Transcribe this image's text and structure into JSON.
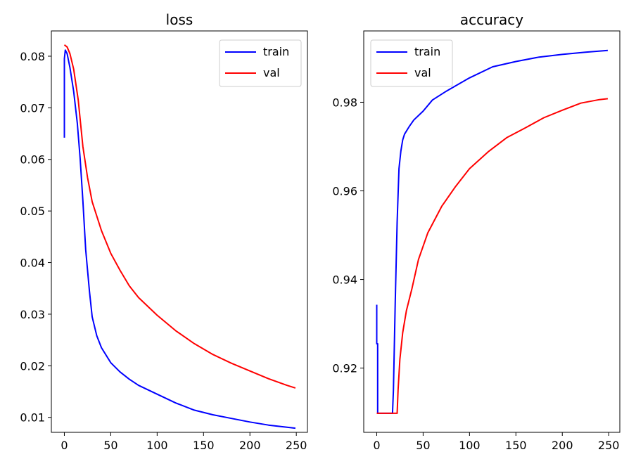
{
  "chart_data": [
    {
      "type": "line",
      "title": "loss",
      "xlabel": "",
      "ylabel": "",
      "xlim": [
        -14,
        262
      ],
      "ylim": [
        0.0071,
        0.0849
      ],
      "xticks": [
        0,
        50,
        100,
        150,
        200,
        250
      ],
      "yticks": [
        0.01,
        0.02,
        0.03,
        0.04,
        0.05,
        0.06,
        0.07,
        0.08
      ],
      "ytick_labels": [
        "0.01",
        "0.02",
        "0.03",
        "0.04",
        "0.05",
        "0.06",
        "0.07",
        "0.08"
      ],
      "grid": false,
      "legend": "top-right",
      "series": [
        {
          "name": "train",
          "color": "#0000ff",
          "x": [
            0,
            0,
            1,
            3,
            6,
            10,
            14,
            17,
            20,
            23,
            27,
            30,
            35,
            40,
            50,
            60,
            70,
            80,
            100,
            120,
            140,
            160,
            180,
            200,
            220,
            240,
            249
          ],
          "y": [
            0.0642,
            0.0795,
            0.0812,
            0.0805,
            0.0778,
            0.0732,
            0.067,
            0.0602,
            0.052,
            0.0425,
            0.0345,
            0.0295,
            0.0258,
            0.0235,
            0.0206,
            0.0188,
            0.0174,
            0.0162,
            0.0145,
            0.0128,
            0.0114,
            0.0105,
            0.0098,
            0.0091,
            0.0085,
            0.0081,
            0.0079
          ]
        },
        {
          "name": "val",
          "color": "#ff0000",
          "x": [
            0,
            3,
            6,
            10,
            15,
            20,
            25,
            30,
            40,
            50,
            60,
            70,
            80,
            100,
            120,
            140,
            160,
            180,
            200,
            220,
            240,
            249
          ],
          "y": [
            0.0822,
            0.0818,
            0.0805,
            0.0775,
            0.0715,
            0.0625,
            0.0565,
            0.0518,
            0.0462,
            0.0418,
            0.0385,
            0.0355,
            0.0332,
            0.0298,
            0.0268,
            0.0243,
            0.0222,
            0.0205,
            0.019,
            0.0175,
            0.0162,
            0.0157
          ]
        }
      ]
    },
    {
      "type": "line",
      "title": "accuracy",
      "xlabel": "",
      "ylabel": "",
      "xlim": [
        -14,
        262
      ],
      "ylim": [
        0.9055,
        0.9961
      ],
      "xticks": [
        0,
        50,
        100,
        150,
        200,
        250
      ],
      "yticks": [
        0.92,
        0.94,
        0.96,
        0.98
      ],
      "ytick_labels": [
        "0.92",
        "0.94",
        "0.96",
        "0.98"
      ],
      "grid": false,
      "legend": "top-left",
      "series": [
        {
          "name": "train",
          "color": "#0000ff",
          "x": [
            0,
            0,
            1,
            1,
            17,
            18,
            20,
            22,
            24,
            26,
            28,
            30,
            35,
            40,
            50,
            60,
            75,
            100,
            125,
            150,
            175,
            200,
            225,
            249
          ],
          "y": [
            0.9343,
            0.9255,
            0.9255,
            0.9098,
            0.9098,
            0.915,
            0.935,
            0.953,
            0.965,
            0.969,
            0.9715,
            0.9728,
            0.9745,
            0.976,
            0.978,
            0.9805,
            0.9825,
            0.9855,
            0.988,
            0.9892,
            0.9902,
            0.9908,
            0.9913,
            0.9917
          ]
        },
        {
          "name": "val",
          "color": "#ff0000",
          "x": [
            0,
            22,
            23,
            25,
            28,
            32,
            38,
            45,
            55,
            70,
            85,
            100,
            120,
            140,
            160,
            180,
            200,
            220,
            240,
            249
          ],
          "y": [
            0.9098,
            0.9098,
            0.915,
            0.922,
            0.928,
            0.933,
            0.938,
            0.9445,
            0.9505,
            0.9565,
            0.961,
            0.965,
            0.9688,
            0.972,
            0.9742,
            0.9765,
            0.9782,
            0.9798,
            0.9806,
            0.9808
          ]
        }
      ]
    }
  ]
}
